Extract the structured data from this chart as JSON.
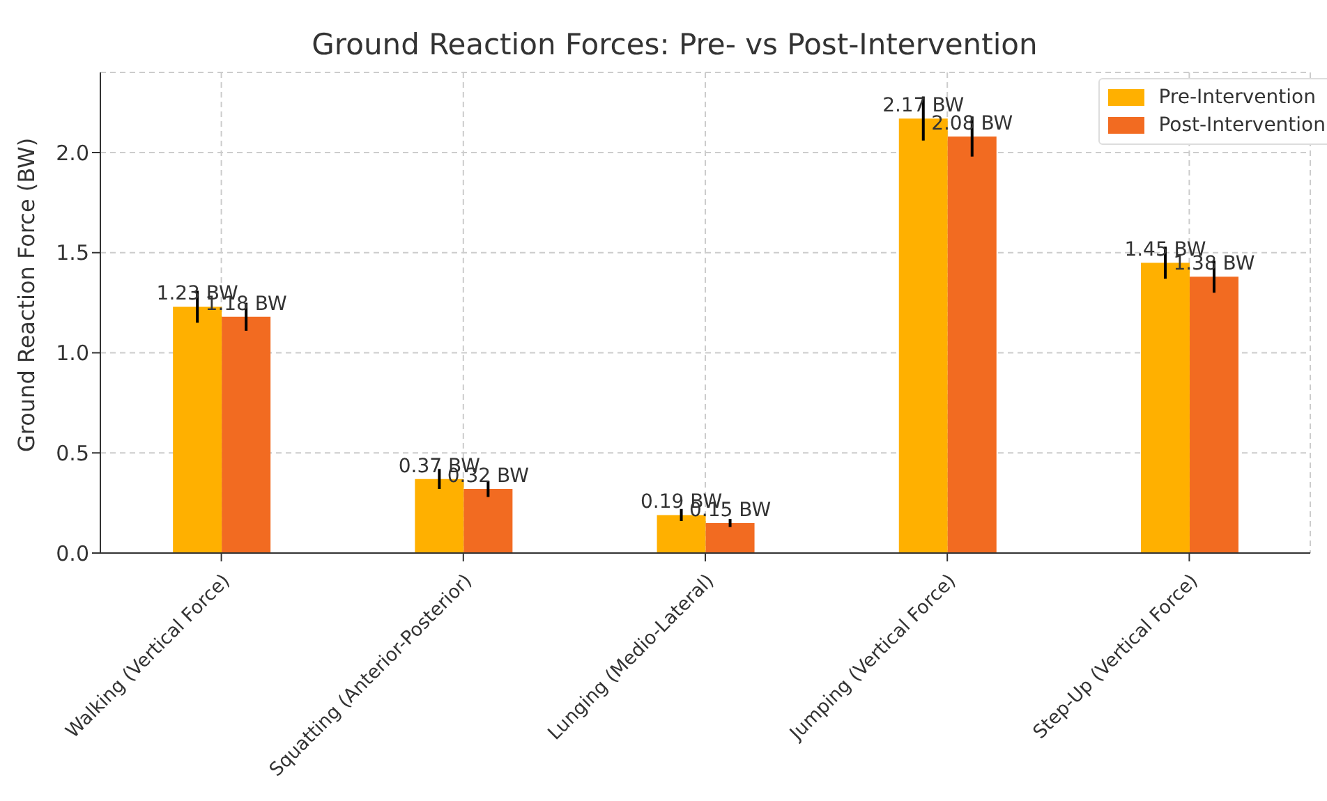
{
  "chart_data": {
    "type": "bar",
    "title": "Ground Reaction Forces: Pre- vs Post-Intervention",
    "ylabel": "Ground Reaction Force (BW)",
    "categories": [
      "Walking (Vertical Force)",
      "Squatting (Anterior-Posterior)",
      "Lunging (Medio-Lateral)",
      "Jumping (Vertical Force)",
      "Step-Up (Vertical Force)"
    ],
    "series": [
      {
        "name": "Pre-Intervention",
        "color": "#ffb000",
        "values": [
          1.23,
          0.37,
          0.19,
          2.17,
          1.45
        ],
        "errors": [
          0.08,
          0.05,
          0.03,
          0.11,
          0.08
        ],
        "value_labels": [
          "1.23 BW",
          "0.37 BW",
          "0.19 BW",
          "2.17 BW",
          "1.45 BW"
        ]
      },
      {
        "name": "Post-Intervention",
        "color": "#f26b21",
        "values": [
          1.18,
          0.32,
          0.15,
          2.08,
          1.38
        ],
        "errors": [
          0.07,
          0.04,
          0.02,
          0.1,
          0.08
        ],
        "value_labels": [
          "1.18 BW",
          "0.32 BW",
          "0.15 BW",
          "2.08 BW",
          "1.38 BW"
        ]
      }
    ],
    "ylim": [
      0,
      2.4
    ],
    "yticks": [
      {
        "value": 0,
        "label": "0.0"
      },
      0.5,
      {
        "value": 1,
        "label": "1.0"
      },
      1.5,
      {
        "value": 2,
        "label": "2.0"
      }
    ],
    "grid": true,
    "legend": "top right"
  }
}
